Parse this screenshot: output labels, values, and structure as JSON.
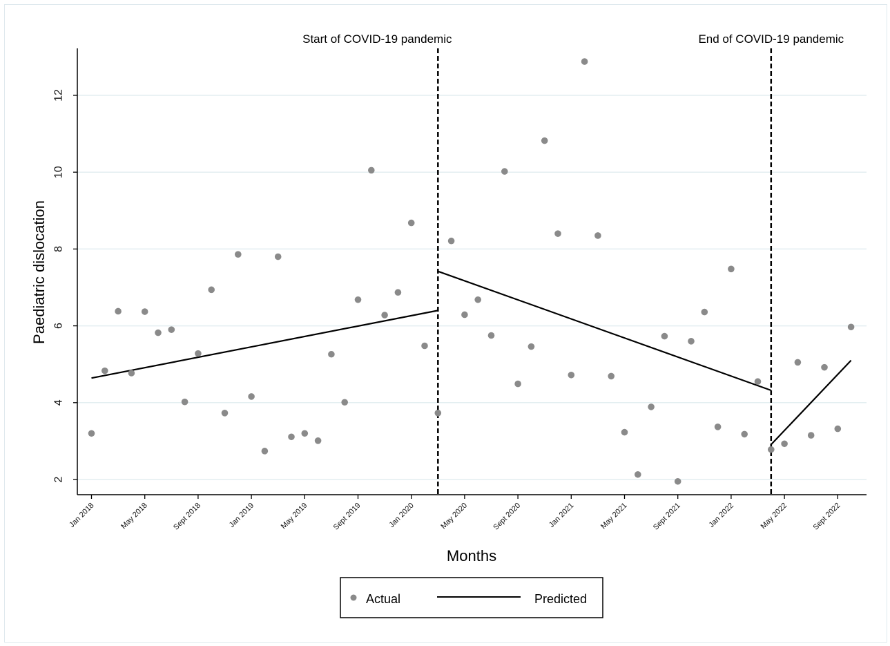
{
  "chart_data": {
    "type": "scatter",
    "xlabel": "Months",
    "ylabel": "Paediatric dislocation",
    "ylim": [
      1.6,
      13.0
    ],
    "yticks": [
      2,
      4,
      6,
      8,
      10,
      12
    ],
    "x_ticks": [
      {
        "index": 0,
        "label": "Jan 2018"
      },
      {
        "index": 4,
        "label": "May 2018"
      },
      {
        "index": 8,
        "label": "Sept 2018"
      },
      {
        "index": 12,
        "label": "Jan 2019"
      },
      {
        "index": 16,
        "label": "May 2019"
      },
      {
        "index": 20,
        "label": "Sept 2019"
      },
      {
        "index": 24,
        "label": "Jan 2020"
      },
      {
        "index": 28,
        "label": "May 2020"
      },
      {
        "index": 32,
        "label": "Sept 2020"
      },
      {
        "index": 36,
        "label": "Jan 2021"
      },
      {
        "index": 40,
        "label": "May 2021"
      },
      {
        "index": 44,
        "label": "Sept 2021"
      },
      {
        "index": 48,
        "label": "Jan 2022"
      },
      {
        "index": 52,
        "label": "May 2022"
      },
      {
        "index": 56,
        "label": "Sept 2022"
      }
    ],
    "series": [
      {
        "name": "Actual",
        "marker": "dot",
        "color": "#8a8a8a",
        "values": [
          3.2,
          4.83,
          6.38,
          4.77,
          6.37,
          5.82,
          5.9,
          4.02,
          5.28,
          6.94,
          3.73,
          7.86,
          4.16,
          2.74,
          7.8,
          3.11,
          3.2,
          3.01,
          5.26,
          4.01,
          6.68,
          10.05,
          6.28,
          6.87,
          8.68,
          5.48,
          3.73,
          8.21,
          6.29,
          6.68,
          5.75,
          10.02,
          4.49,
          5.46,
          10.82,
          8.4,
          4.72,
          12.88,
          8.35,
          4.69,
          3.23,
          2.13,
          3.89,
          5.73,
          1.95,
          5.6,
          6.36,
          3.37,
          7.48,
          3.18,
          4.55,
          2.78,
          2.93,
          5.05,
          3.15,
          4.92,
          3.32,
          5.97
        ]
      },
      {
        "name": "Predicted",
        "marker": "line",
        "color": "#000000",
        "segments": [
          {
            "x": [
              0,
              26
            ],
            "y": [
              4.64,
              6.4
            ]
          },
          {
            "x": [
              26,
              51
            ],
            "y": [
              7.42,
              4.32
            ]
          },
          {
            "x": [
              51,
              57
            ],
            "y": [
              2.91,
              5.1
            ]
          }
        ]
      }
    ],
    "vlines": [
      {
        "x": 26,
        "label": "Start of COVID-19 pandemic"
      },
      {
        "x": 51,
        "label": "End of COVID-19 pandemic"
      }
    ],
    "grid": true,
    "legend_position": "bottom-center",
    "colors": {
      "grid": "#e3eef1",
      "dots": "#8a8a8a",
      "line": "#000000"
    }
  }
}
